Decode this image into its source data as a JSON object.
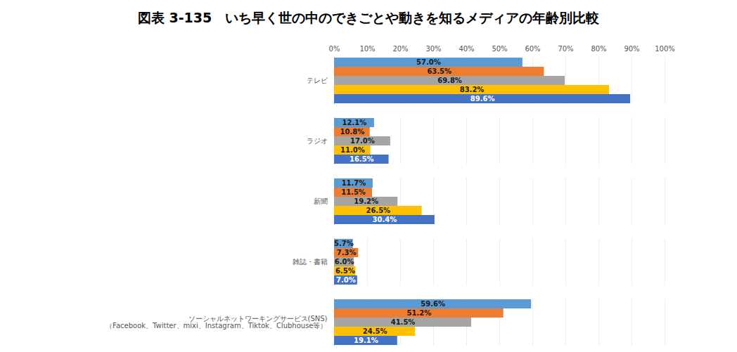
{
  "chart_data": {
    "type": "bar",
    "orientation": "horizontal",
    "title": "図表 3-135　いち早く世の中のできごとや動きを知るメディアの年齢別比較",
    "categories": [
      "テレビ",
      "ラジオ",
      "新聞",
      "雑誌・書籍",
      "ソーシャルネットワーキングサービス(SNS)\n（Facebook、Twitter、mixi、Instagram、Tiktok、Clubhouse等）"
    ],
    "series": [
      {
        "color": "#5B9BD5",
        "values": [
          57.0,
          12.1,
          11.7,
          5.7,
          59.6
        ],
        "value_labels": [
          "57.0%",
          "12.1%",
          "11.7%",
          "5.7%",
          "59.6%"
        ]
      },
      {
        "color": "#ED7D31",
        "values": [
          63.5,
          10.8,
          11.5,
          7.3,
          51.2
        ],
        "value_labels": [
          "63.5%",
          "10.8%",
          "11.5%",
          "7.3%",
          "51.2%"
        ]
      },
      {
        "color": "#A5A5A5",
        "values": [
          69.8,
          17.0,
          19.2,
          6.0,
          41.5
        ],
        "value_labels": [
          "69.8%",
          "17.0%",
          "19.2%",
          "6.0%",
          "41.5%"
        ]
      },
      {
        "color": "#FFC000",
        "values": [
          83.2,
          11.0,
          26.5,
          6.5,
          24.5
        ],
        "value_labels": [
          "83.2%",
          "11.0%",
          "26.5%",
          "6.5%",
          "24.5%"
        ]
      },
      {
        "color": "#4472C4",
        "values": [
          89.6,
          16.5,
          30.4,
          7.0,
          19.1
        ],
        "value_labels": [
          "89.6%",
          "16.5%",
          "30.4%",
          "7.0%",
          "19.1%"
        ]
      }
    ],
    "xlim": [
      0,
      100
    ],
    "xticks": [
      {
        "value": 0,
        "label": "0%"
      },
      {
        "value": 10,
        "label": "10%"
      },
      {
        "value": 20,
        "label": "20%"
      },
      {
        "value": 30,
        "label": "30%"
      },
      {
        "value": 40,
        "label": "40%"
      },
      {
        "value": 50,
        "label": "50%"
      },
      {
        "value": 60,
        "label": "60%"
      },
      {
        "value": 70,
        "label": "70%"
      },
      {
        "value": 80,
        "label": "80%"
      },
      {
        "value": 90,
        "label": "90%"
      },
      {
        "value": 100,
        "label": "100%"
      }
    ],
    "grid": true,
    "data_labels": true
  }
}
